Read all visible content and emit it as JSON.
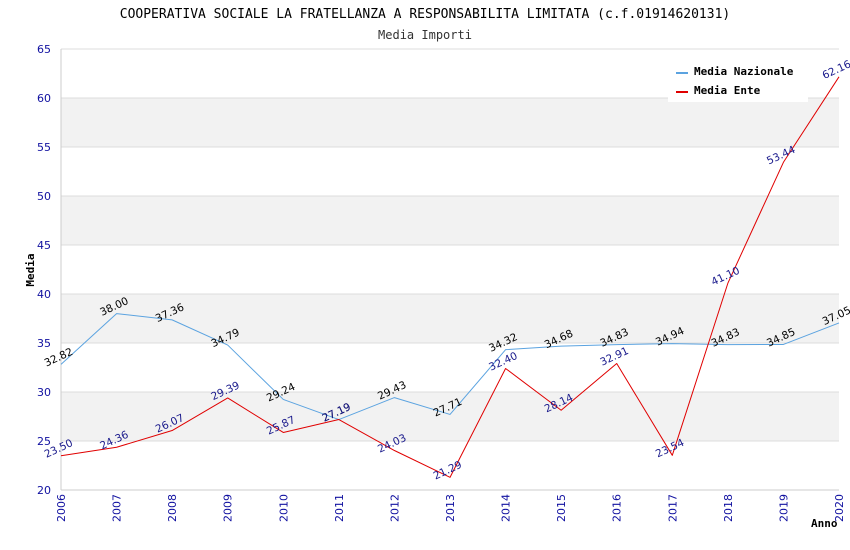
{
  "chart_data": {
    "type": "line",
    "title": "COOPERATIVA SOCIALE LA FRATELLANZA A RESPONSABILITA LIMITATA (c.f.01914620131)",
    "subtitle": "Media Importi",
    "xlabel": "Anno",
    "ylabel": "Media",
    "ylim": [
      20,
      65
    ],
    "yticks": [
      "20",
      "25",
      "30",
      "35",
      "40",
      "45",
      "50",
      "55",
      "60",
      "65"
    ],
    "grid": true,
    "legend_position": "top-right",
    "categories": [
      "2006",
      "2007",
      "2008",
      "2009",
      "2010",
      "2011",
      "2012",
      "2013",
      "2014",
      "2015",
      "2016",
      "2017",
      "2018",
      "2019",
      "2020"
    ],
    "series": [
      {
        "name": "Media Nazionale",
        "color": "#5ba3e0",
        "label_color": "#000000",
        "values": [
          32.82,
          38.0,
          37.36,
          34.79,
          29.24,
          27.19,
          29.43,
          27.71,
          34.32,
          34.68,
          34.83,
          34.94,
          34.83,
          34.85,
          37.05
        ],
        "labels": [
          "32.82",
          "38.00",
          "37.36",
          "34.79",
          "29.24",
          "27.19",
          "29.43",
          "27.71",
          "34.32",
          "34.68",
          "34.83",
          "34.94",
          "34.83",
          "34.85",
          "37.05"
        ]
      },
      {
        "name": "Media Ente",
        "color": "#e00000",
        "label_color": "#1a1a8c",
        "values": [
          23.5,
          24.36,
          26.07,
          29.39,
          25.87,
          27.19,
          24.03,
          21.29,
          32.4,
          28.14,
          32.91,
          23.54,
          41.1,
          53.44,
          62.16
        ],
        "labels": [
          "23.50",
          "24.36",
          "26.07",
          "29.39",
          "25.87",
          "27.19",
          "24.03",
          "21.29",
          "32.40",
          "28.14",
          "32.91",
          "23.54",
          "41.10",
          "53.44",
          "62.16"
        ]
      }
    ]
  }
}
